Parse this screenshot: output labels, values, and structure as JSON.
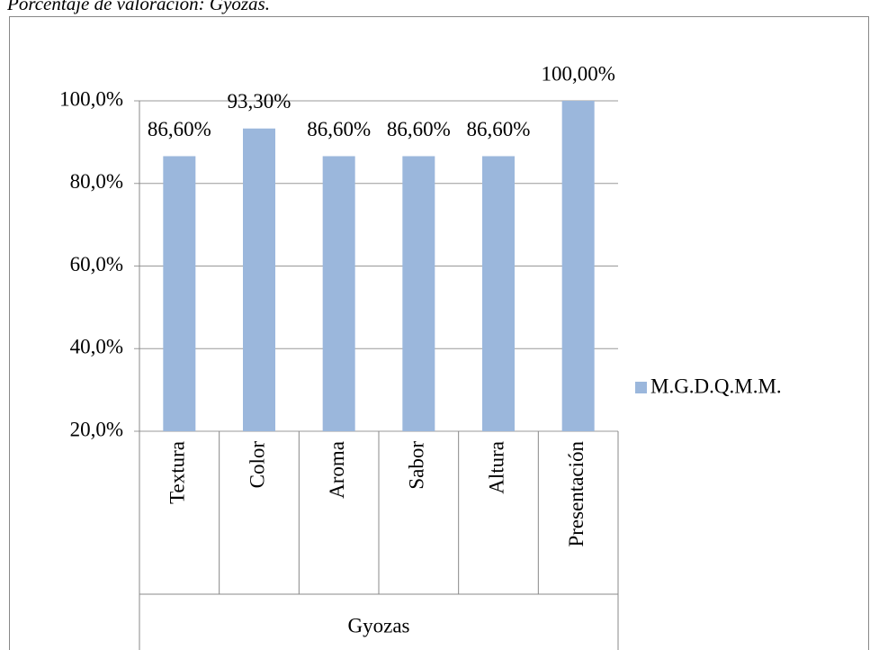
{
  "chart_data": {
    "type": "bar",
    "title": "Porcentaje de valoración: Gyozas.",
    "categories": [
      "Textura",
      "Color",
      "Aroma",
      "Sabor",
      "Altura",
      "Presentación"
    ],
    "group_label": "Gyozas",
    "series": [
      {
        "name": "M.G.D.Q.M.M.",
        "color": "#9bb7dc",
        "values": [
          86.6,
          93.3,
          86.6,
          86.6,
          86.6,
          100
        ],
        "value_labels": [
          "86,60%",
          "93,30%",
          "86,60%",
          "86,60%",
          "86,60%",
          "100,00%"
        ]
      }
    ],
    "ylim": [
      20,
      100
    ],
    "yticks": [
      {
        "value": 20,
        "label": "20,0%"
      },
      {
        "value": 40,
        "label": "40,0%"
      },
      {
        "value": 60,
        "label": "60,0%"
      },
      {
        "value": 80,
        "label": "80,0%"
      },
      {
        "value": 100,
        "label": "100,0%"
      }
    ],
    "grid": true,
    "legend": "right"
  }
}
